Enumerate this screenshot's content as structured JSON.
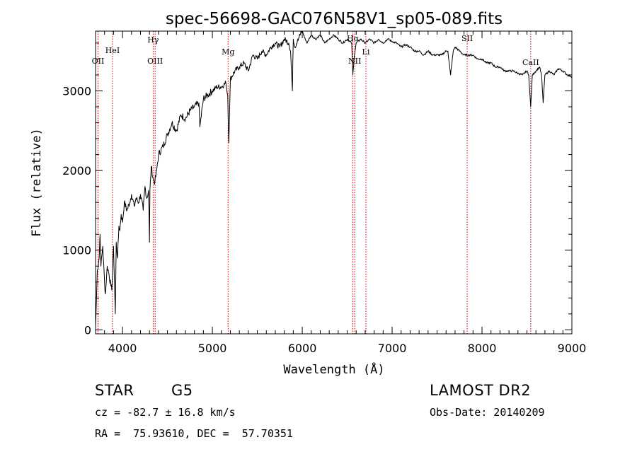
{
  "chart_data": {
    "type": "line",
    "title": "spec-56698-GAC076N58V1_sp05-089.fits",
    "xlabel": "Wavelength (Å)",
    "ylabel": "Flux (relative)",
    "xlim": [
      3700,
      9000
    ],
    "ylim": [
      -50,
      3750
    ],
    "xticks": [
      4000,
      5000,
      6000,
      7000,
      8000,
      9000
    ],
    "yticks": [
      0,
      1000,
      2000,
      3000
    ],
    "series": [
      {
        "name": "spectrum",
        "x": [
          3700,
          3705,
          3720,
          3740,
          3750,
          3760,
          3780,
          3800,
          3810,
          3830,
          3850,
          3870,
          3880,
          3900,
          3920,
          3930,
          3945,
          3960,
          3970,
          3985,
          4000,
          4020,
          4050,
          4080,
          4100,
          4130,
          4150,
          4180,
          4200,
          4230,
          4250,
          4270,
          4290,
          4300,
          4305,
          4320,
          4340,
          4360,
          4380,
          4400,
          4450,
          4500,
          4550,
          4600,
          4650,
          4700,
          4750,
          4800,
          4850,
          4861,
          4900,
          4950,
          5000,
          5050,
          5100,
          5150,
          5170,
          5183,
          5200,
          5250,
          5300,
          5350,
          5400,
          5450,
          5500,
          5550,
          5600,
          5650,
          5700,
          5750,
          5800,
          5850,
          5870,
          5890,
          5900,
          5920,
          5950,
          6000,
          6050,
          6100,
          6150,
          6200,
          6250,
          6300,
          6350,
          6400,
          6450,
          6500,
          6550,
          6563,
          6580,
          6600,
          6650,
          6700,
          6750,
          6800,
          6850,
          6900,
          6950,
          7000,
          7050,
          7100,
          7150,
          7200,
          7250,
          7300,
          7350,
          7400,
          7450,
          7500,
          7550,
          7600,
          7620,
          7650,
          7680,
          7700,
          7750,
          7800,
          7850,
          7900,
          7950,
          8000,
          8050,
          8100,
          8150,
          8200,
          8250,
          8300,
          8350,
          8400,
          8450,
          8498,
          8520,
          8542,
          8560,
          8600,
          8640,
          8662,
          8680,
          8700,
          8750,
          8800,
          8850,
          8900,
          8950,
          9000
        ],
        "values": [
          50,
          200,
          750,
          900,
          1200,
          800,
          1050,
          600,
          450,
          800,
          700,
          550,
          500,
          1050,
          200,
          1100,
          900,
          1300,
          1250,
          1450,
          1350,
          1600,
          1500,
          1600,
          1700,
          1550,
          1650,
          1600,
          1700,
          1500,
          1800,
          1650,
          1750,
          1100,
          1750,
          2050,
          1900,
          1850,
          2000,
          2200,
          2300,
          2450,
          2600,
          2500,
          2700,
          2650,
          2750,
          2800,
          2850,
          2550,
          2900,
          2950,
          3000,
          3050,
          3050,
          3100,
          2950,
          2350,
          3150,
          3250,
          3300,
          3350,
          3250,
          3450,
          3400,
          3500,
          3450,
          3550,
          3600,
          3550,
          3650,
          3600,
          3500,
          3000,
          3650,
          3550,
          3650,
          3750,
          3600,
          3700,
          3650,
          3700,
          3600,
          3650,
          3700,
          3650,
          3600,
          3650,
          3600,
          3200,
          3450,
          3600,
          3650,
          3600,
          3650,
          3600,
          3650,
          3600,
          3650,
          3620,
          3600,
          3550,
          3580,
          3550,
          3500,
          3500,
          3450,
          3500,
          3450,
          3450,
          3450,
          3500,
          3500,
          3200,
          3500,
          3550,
          3500,
          3450,
          3450,
          3450,
          3400,
          3400,
          3350,
          3350,
          3300,
          3300,
          3250,
          3250,
          3250,
          3220,
          3200,
          3250,
          3200,
          2800,
          3200,
          3250,
          3300,
          3200,
          2850,
          3200,
          3250,
          3200,
          3280,
          3250,
          3200,
          3180
        ]
      }
    ],
    "lines": [
      {
        "label": "OII",
        "x": 3727
      },
      {
        "label": "HeI",
        "x": 3889
      },
      {
        "label": "Hγ",
        "x": 4341
      },
      {
        "label": "OIII",
        "x": 4363
      },
      {
        "label": "Mg",
        "x": 5175
      },
      {
        "label": "Hα",
        "x": 6563
      },
      {
        "label": "NII",
        "x": 6584
      },
      {
        "label": "Li",
        "x": 6708
      },
      {
        "label": "SII",
        "x": 7835
      },
      {
        "label": "CaII",
        "x": 8542
      }
    ]
  },
  "info": {
    "obj_class": "STAR",
    "subclass": "G5",
    "survey": "LAMOST DR2",
    "cz": "cz = -82.7 ± 16.8 km/s",
    "obs_date": "Obs-Date: 20140209",
    "coords": "RA =  75.93610, DEC =  57.70351"
  },
  "colors": {
    "line": "#000000",
    "marker": "#cc0000",
    "background": "#ffffff"
  }
}
